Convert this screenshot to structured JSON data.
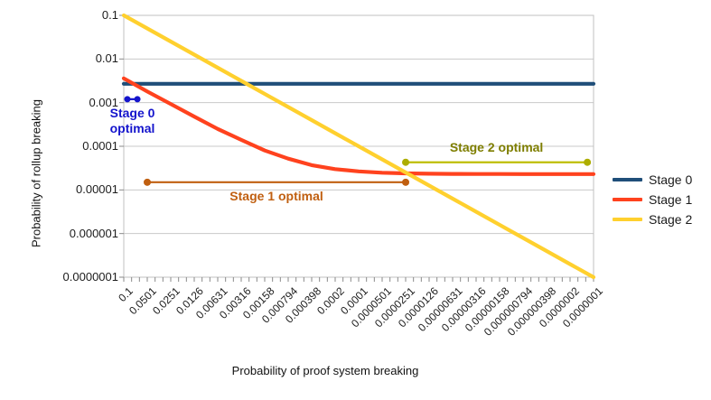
{
  "chart_data": {
    "type": "line",
    "title": "",
    "xlabel": "Probability of proof system breaking",
    "ylabel": "Probability of rollup breaking",
    "x_scale": "log",
    "y_scale": "log",
    "x_range": [
      0.1,
      1e-07
    ],
    "y_range": [
      0.1,
      1e-07
    ],
    "grid": "horizontal",
    "legend_position": "right",
    "x_tick_labels": [
      "0.1",
      "0.0501",
      "0.0251",
      "0.0126",
      "0.00631",
      "0.00316",
      "0.00158",
      "0.000794",
      "0.000398",
      "0.0002",
      "0.0001",
      "0.0000501",
      "0.0000251",
      "0.0000126",
      "0.00000631",
      "0.00000316",
      "0.00000158",
      "0.000000794",
      "0.000000398",
      "0.0000002",
      "0.0000001"
    ],
    "y_tick_labels": [
      "0.1",
      "0.01",
      "0.001",
      "0.0001",
      "0.00001",
      "0.000001",
      "0.0000001"
    ],
    "x": [
      0.1,
      0.0501,
      0.0251,
      0.0126,
      0.00631,
      0.00316,
      0.00158,
      0.000794,
      0.000398,
      0.0002,
      0.0001,
      5.01e-05,
      2.51e-05,
      1.26e-05,
      6.31e-06,
      3.16e-06,
      1.58e-06,
      7.94e-07,
      3.98e-07,
      2e-07,
      1e-07
    ],
    "series": [
      {
        "name": "Stage 0",
        "color": "#1F4E79",
        "values": [
          0.0027,
          0.0027,
          0.0027,
          0.0027,
          0.0027,
          0.0027,
          0.0027,
          0.0027,
          0.0027,
          0.0027,
          0.0027,
          0.0027,
          0.0027,
          0.0027,
          0.0027,
          0.0027,
          0.0027,
          0.0027,
          0.0027,
          0.0027,
          0.0027
        ]
      },
      {
        "name": "Stage 1",
        "color": "#FF421E",
        "values": [
          0.0036,
          0.0018,
          0.00093,
          0.00048,
          0.00025,
          0.00014,
          8e-05,
          5.2e-05,
          3.7e-05,
          3e-05,
          2.66e-05,
          2.48e-05,
          2.39e-05,
          2.35e-05,
          2.33e-05,
          2.32e-05,
          2.32e-05,
          2.31e-05,
          2.31e-05,
          2.31e-05,
          2.31e-05
        ]
      },
      {
        "name": "Stage 2",
        "color": "#FFD02E",
        "values": [
          0.1,
          0.0501,
          0.0251,
          0.0126,
          0.00631,
          0.00316,
          0.00158,
          0.000794,
          0.000398,
          0.0002,
          0.0001,
          5.01e-05,
          2.51e-05,
          1.26e-05,
          6.31e-06,
          3.16e-06,
          1.58e-06,
          7.94e-07,
          3.98e-07,
          2e-07,
          1e-07
        ]
      }
    ],
    "annotations": [
      {
        "label": "Stage 0 optimal",
        "text_color": "#1414CC",
        "line_color": "#1414CC",
        "dot_color": "#1414CC",
        "x1": 0.09,
        "x2": 0.067,
        "y": 0.0012,
        "label_pos": "below",
        "dot_r": 3.5,
        "label_width": 64
      },
      {
        "label": "Stage 1 optimal",
        "text_color": "#C05F10",
        "line_color": "#C05F10",
        "dot_color": "#C05F10",
        "x1": 0.0501,
        "x2": 2.51e-05,
        "y": 1.5e-05,
        "label_pos": "below",
        "dot_r": 4,
        "label_width": 120
      },
      {
        "label": "Stage 2 optimal",
        "text_color": "#7E7E00",
        "line_color": "#BEBE00",
        "dot_color": "#ADAD00",
        "x1": 2.51e-05,
        "x2": 1.2e-07,
        "y": 4.3e-05,
        "label_pos": "above",
        "dot_r": 4,
        "label_width": 130
      }
    ]
  }
}
